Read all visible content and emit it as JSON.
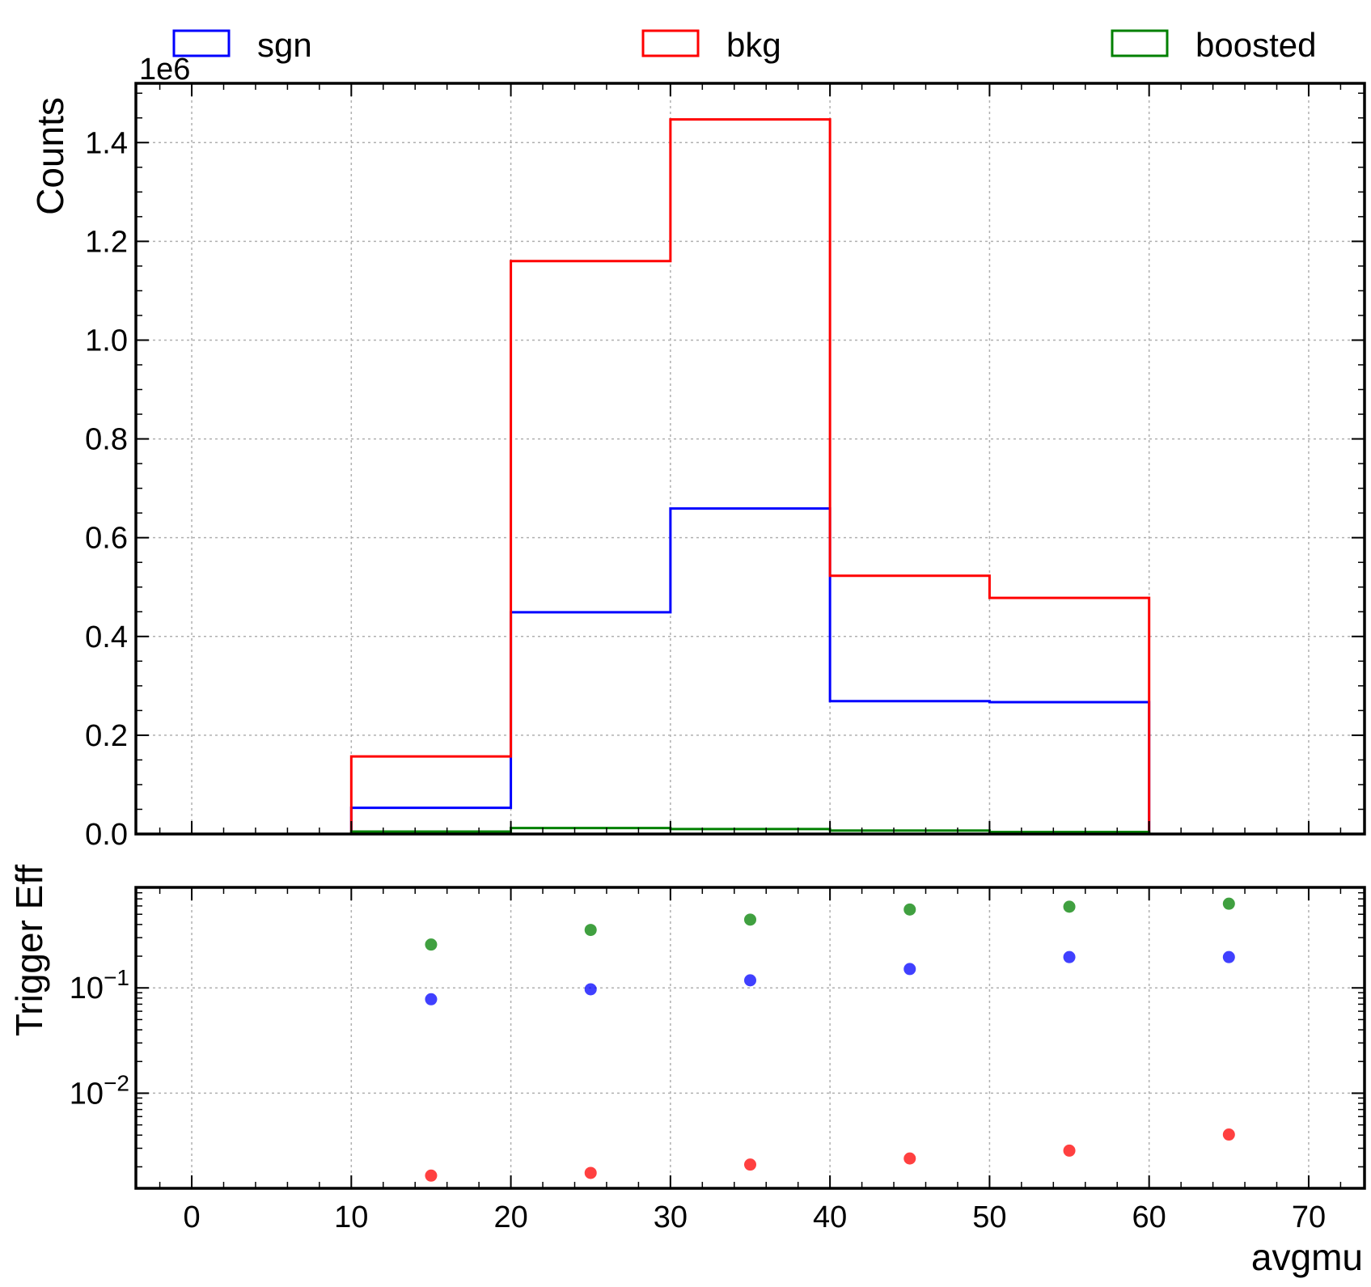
{
  "chart_data": [
    {
      "type": "histogram-step",
      "name": "counts-panel",
      "ylabel": "Counts",
      "offset_text": "1e6",
      "xlim": [
        -3.5,
        73.5
      ],
      "ylim": [
        0,
        1.52
      ],
      "yticks": [
        0.0,
        0.2,
        0.4,
        0.6,
        0.8,
        1.0,
        1.2,
        1.4
      ],
      "ytick_labels": [
        "0.0",
        "0.2",
        "0.4",
        "0.6",
        "0.8",
        "1.0",
        "1.2",
        "1.4"
      ],
      "grid": true,
      "legend": {
        "placement": "top",
        "entries": [
          "sgn",
          "bkg",
          "boosted"
        ]
      },
      "bin_edges": [
        0,
        10,
        20,
        30,
        40,
        50,
        60,
        70
      ],
      "series": [
        {
          "name": "sgn",
          "color": "#0000ff",
          "values": [
            0,
            0.053,
            0.449,
            0.659,
            0.269,
            0.267,
            0
          ]
        },
        {
          "name": "bkg",
          "color": "#ff0000",
          "values": [
            0,
            0.157,
            1.16,
            1.447,
            0.523,
            0.478,
            0
          ]
        },
        {
          "name": "boosted",
          "color": "#008000",
          "values": [
            0,
            0.005,
            0.012,
            0.01,
            0.007,
            0.004,
            0
          ]
        }
      ]
    },
    {
      "type": "scatter",
      "name": "trigger-eff-panel",
      "xlabel": "avgmu",
      "ylabel": "Trigger Eff",
      "yscale": "log",
      "xlim": [
        -3.5,
        73.5
      ],
      "ylim": [
        0.00125,
        0.9
      ],
      "xticks": [
        0,
        10,
        20,
        30,
        40,
        50,
        60,
        70
      ],
      "xtick_labels": [
        "0",
        "10",
        "20",
        "30",
        "40",
        "50",
        "60",
        "70"
      ],
      "yticks": [
        0.1,
        0.01
      ],
      "ytick_labels": [
        {
          "base": "10",
          "exp": "−1"
        },
        {
          "base": "10",
          "exp": "−2"
        }
      ],
      "grid": true,
      "x": [
        15,
        25,
        35,
        45,
        55,
        65
      ],
      "series": [
        {
          "name": "sgn",
          "color": "#0000ff",
          "values": [
            0.078,
            0.097,
            0.118,
            0.151,
            0.196,
            0.196
          ]
        },
        {
          "name": "bkg",
          "color": "#ff0000",
          "values": [
            0.00165,
            0.00175,
            0.0021,
            0.0024,
            0.00285,
            0.00405
          ]
        },
        {
          "name": "boosted",
          "color": "#008000",
          "values": [
            0.258,
            0.355,
            0.445,
            0.555,
            0.59,
            0.63
          ]
        }
      ]
    }
  ]
}
